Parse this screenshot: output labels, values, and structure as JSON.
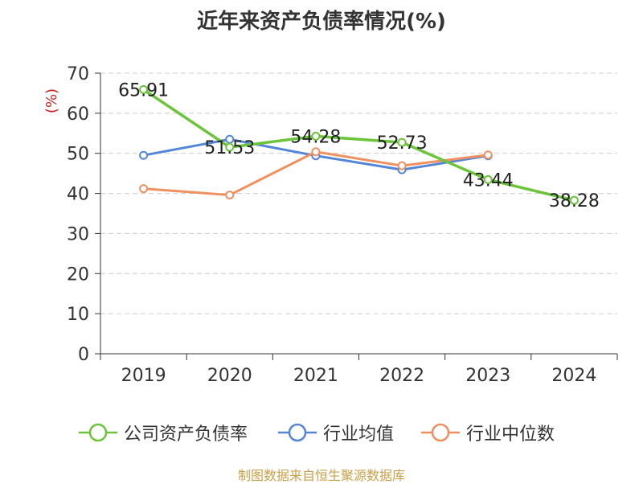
{
  "title": "近年来资产负债率情况(%)",
  "source_text": "制图数据来自恒生聚源数据库",
  "colors": {
    "company": "#6cc43a",
    "avg": "#5486d8",
    "median": "#f09060"
  },
  "chart_data": {
    "type": "line",
    "title": "近年来资产负债率情况(%)",
    "ylabel": "(%)",
    "xlabel": "",
    "categories": [
      "2019",
      "2020",
      "2021",
      "2022",
      "2023",
      "2024"
    ],
    "ylim": [
      0,
      70
    ],
    "yticks": [
      "0",
      "10",
      "20",
      "30",
      "40",
      "50",
      "60",
      "70"
    ],
    "grid": "horizontal dashed",
    "legend": "bottom",
    "series": [
      {
        "name": "公司资产负债率",
        "color": "#6cc43a",
        "values": [
          65.91,
          51.53,
          54.28,
          52.73,
          43.44,
          38.28
        ],
        "labels": [
          "65.91",
          "51.53",
          "54.28",
          "52.73",
          "43.44",
          "38.28"
        ]
      },
      {
        "name": "行业均值",
        "color": "#5486d8",
        "values": [
          49.5,
          53.5,
          49.4,
          45.9,
          49.4,
          null
        ]
      },
      {
        "name": "行业中位数",
        "color": "#f09060",
        "values": [
          41.2,
          39.6,
          50.4,
          46.9,
          49.6,
          null
        ]
      }
    ]
  }
}
